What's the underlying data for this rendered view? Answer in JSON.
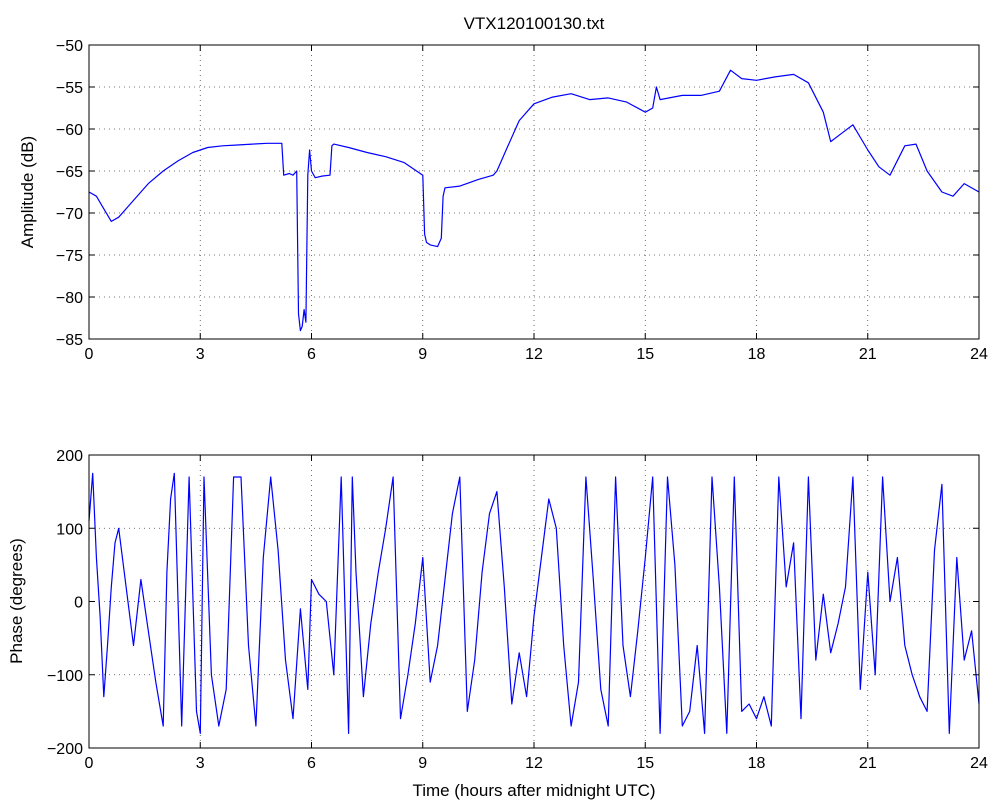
{
  "chart_data": [
    {
      "id": "amplitude",
      "type": "line",
      "title": "VTX120100130.txt",
      "xlabel": "",
      "ylabel": "Amplitude (dB)",
      "xlim": [
        0,
        24
      ],
      "ylim": [
        -85,
        -50
      ],
      "xticks": [
        0,
        3,
        6,
        9,
        12,
        15,
        18,
        21,
        24
      ],
      "yticks": [
        -85,
        -80,
        -75,
        -70,
        -65,
        -60,
        -55,
        -50
      ],
      "grid": true,
      "line_color": "#0000ff",
      "series": [
        {
          "x": [
            0,
            0.2,
            0.4,
            0.6,
            0.8,
            1.2,
            1.6,
            2.0,
            2.4,
            2.8,
            3.2,
            3.6,
            4.0,
            4.4,
            4.8,
            5.2,
            5.25,
            5.4,
            5.5,
            5.6,
            5.65,
            5.7,
            5.75,
            5.8,
            5.85,
            5.9,
            5.95,
            6.0,
            6.1,
            6.3,
            6.5,
            6.55,
            6.6,
            7.0,
            7.5,
            8.0,
            8.5,
            9.0,
            9.05,
            9.1,
            9.2,
            9.4,
            9.5,
            9.55,
            9.6,
            10.0,
            10.5,
            10.9,
            11.0,
            11.3,
            11.6,
            12.0,
            12.5,
            13.0,
            13.5,
            14.0,
            14.5,
            15.0,
            15.2,
            15.3,
            15.4,
            16.0,
            16.5,
            17.0,
            17.3,
            17.6,
            18.0,
            18.5,
            19.0,
            19.4,
            19.8,
            20.0,
            20.3,
            20.6,
            21.0,
            21.3,
            21.6,
            22.0,
            22.3,
            22.6,
            23.0,
            23.3,
            23.6,
            24.0
          ],
          "y": [
            -67.5,
            -68.0,
            -69.5,
            -71.0,
            -70.5,
            -68.5,
            -66.5,
            -65.0,
            -63.8,
            -62.8,
            -62.2,
            -62.0,
            -61.9,
            -61.8,
            -61.7,
            -61.7,
            -65.5,
            -65.3,
            -65.5,
            -65.0,
            -82.0,
            -84.0,
            -83.5,
            -81.5,
            -83.0,
            -65.5,
            -62.5,
            -65.0,
            -65.8,
            -65.6,
            -65.5,
            -62.0,
            -61.8,
            -62.2,
            -62.8,
            -63.3,
            -64.0,
            -65.5,
            -72.5,
            -73.5,
            -73.8,
            -74.0,
            -73.0,
            -68.0,
            -67.0,
            -66.8,
            -66.0,
            -65.5,
            -65.0,
            -62.0,
            -59.0,
            -57.0,
            -56.2,
            -55.8,
            -56.5,
            -56.3,
            -56.8,
            -58.0,
            -57.5,
            -55.0,
            -56.5,
            -56.0,
            -56.0,
            -55.5,
            -53.0,
            -54.0,
            -54.2,
            -53.8,
            -53.5,
            -54.5,
            -58.0,
            -61.5,
            -60.5,
            -59.5,
            -62.5,
            -64.5,
            -65.5,
            -62.0,
            -61.8,
            -65.0,
            -67.5,
            -68.0,
            -66.5,
            -67.5
          ]
        }
      ]
    },
    {
      "id": "phase",
      "type": "line",
      "title": "",
      "xlabel": "Time (hours after midnight UTC)",
      "ylabel": "Phase (degrees)",
      "xlim": [
        0,
        24
      ],
      "ylim": [
        -200,
        200
      ],
      "xticks": [
        0,
        3,
        6,
        9,
        12,
        15,
        18,
        21,
        24
      ],
      "yticks": [
        -200,
        -100,
        0,
        100,
        200
      ],
      "grid": true,
      "line_color": "#0000ff",
      "series": [
        {
          "x": [
            0,
            0.1,
            0.2,
            0.3,
            0.4,
            0.5,
            0.6,
            0.7,
            0.8,
            1.0,
            1.2,
            1.4,
            1.6,
            1.8,
            2.0,
            2.1,
            2.2,
            2.3,
            2.5,
            2.7,
            2.9,
            3.0,
            3.1,
            3.3,
            3.5,
            3.7,
            3.9,
            4.1,
            4.3,
            4.5,
            4.7,
            4.9,
            5.1,
            5.3,
            5.5,
            5.7,
            5.9,
            6.0,
            6.2,
            6.4,
            6.6,
            6.8,
            7.0,
            7.1,
            7.2,
            7.4,
            7.6,
            7.8,
            8.0,
            8.2,
            8.4,
            8.6,
            8.8,
            9.0,
            9.2,
            9.4,
            9.6,
            9.8,
            10.0,
            10.2,
            10.4,
            10.6,
            10.8,
            11.0,
            11.2,
            11.4,
            11.6,
            11.8,
            12.0,
            12.2,
            12.4,
            12.6,
            12.8,
            13.0,
            13.2,
            13.4,
            13.6,
            13.8,
            14.0,
            14.2,
            14.4,
            14.6,
            14.8,
            15.0,
            15.2,
            15.4,
            15.6,
            15.8,
            16.0,
            16.2,
            16.4,
            16.6,
            16.8,
            17.0,
            17.2,
            17.4,
            17.6,
            17.8,
            18.0,
            18.2,
            18.4,
            18.6,
            18.8,
            19.0,
            19.2,
            19.4,
            19.6,
            19.8,
            20.0,
            20.2,
            20.4,
            20.6,
            20.8,
            21.0,
            21.2,
            21.4,
            21.6,
            21.8,
            22.0,
            22.2,
            22.4,
            22.6,
            22.8,
            23.0,
            23.2,
            23.4,
            23.6,
            23.8,
            24.0
          ],
          "y": [
            110,
            175,
            60,
            -20,
            -130,
            -60,
            20,
            80,
            100,
            20,
            -60,
            30,
            -40,
            -110,
            -170,
            40,
            140,
            175,
            -170,
            170,
            -150,
            -180,
            170,
            -100,
            -170,
            -120,
            170,
            170,
            -60,
            -170,
            60,
            170,
            70,
            -80,
            -160,
            -10,
            -120,
            30,
            10,
            0,
            -100,
            170,
            -180,
            170,
            40,
            -130,
            -30,
            40,
            100,
            170,
            -160,
            -100,
            -30,
            60,
            -110,
            -60,
            30,
            120,
            170,
            -150,
            -80,
            40,
            120,
            150,
            20,
            -140,
            -70,
            -130,
            -20,
            60,
            140,
            100,
            -60,
            -170,
            -110,
            170,
            30,
            -120,
            -170,
            170,
            -60,
            -130,
            -40,
            60,
            170,
            -180,
            170,
            50,
            -170,
            -150,
            -60,
            -180,
            170,
            20,
            -180,
            170,
            -150,
            -140,
            -160,
            -130,
            -170,
            170,
            20,
            80,
            -160,
            170,
            -80,
            10,
            -70,
            -30,
            20,
            170,
            -120,
            40,
            -100,
            170,
            0,
            60,
            -60,
            -100,
            -130,
            -150,
            70,
            160,
            -180,
            60,
            -80,
            -40,
            -140
          ]
        }
      ]
    }
  ]
}
